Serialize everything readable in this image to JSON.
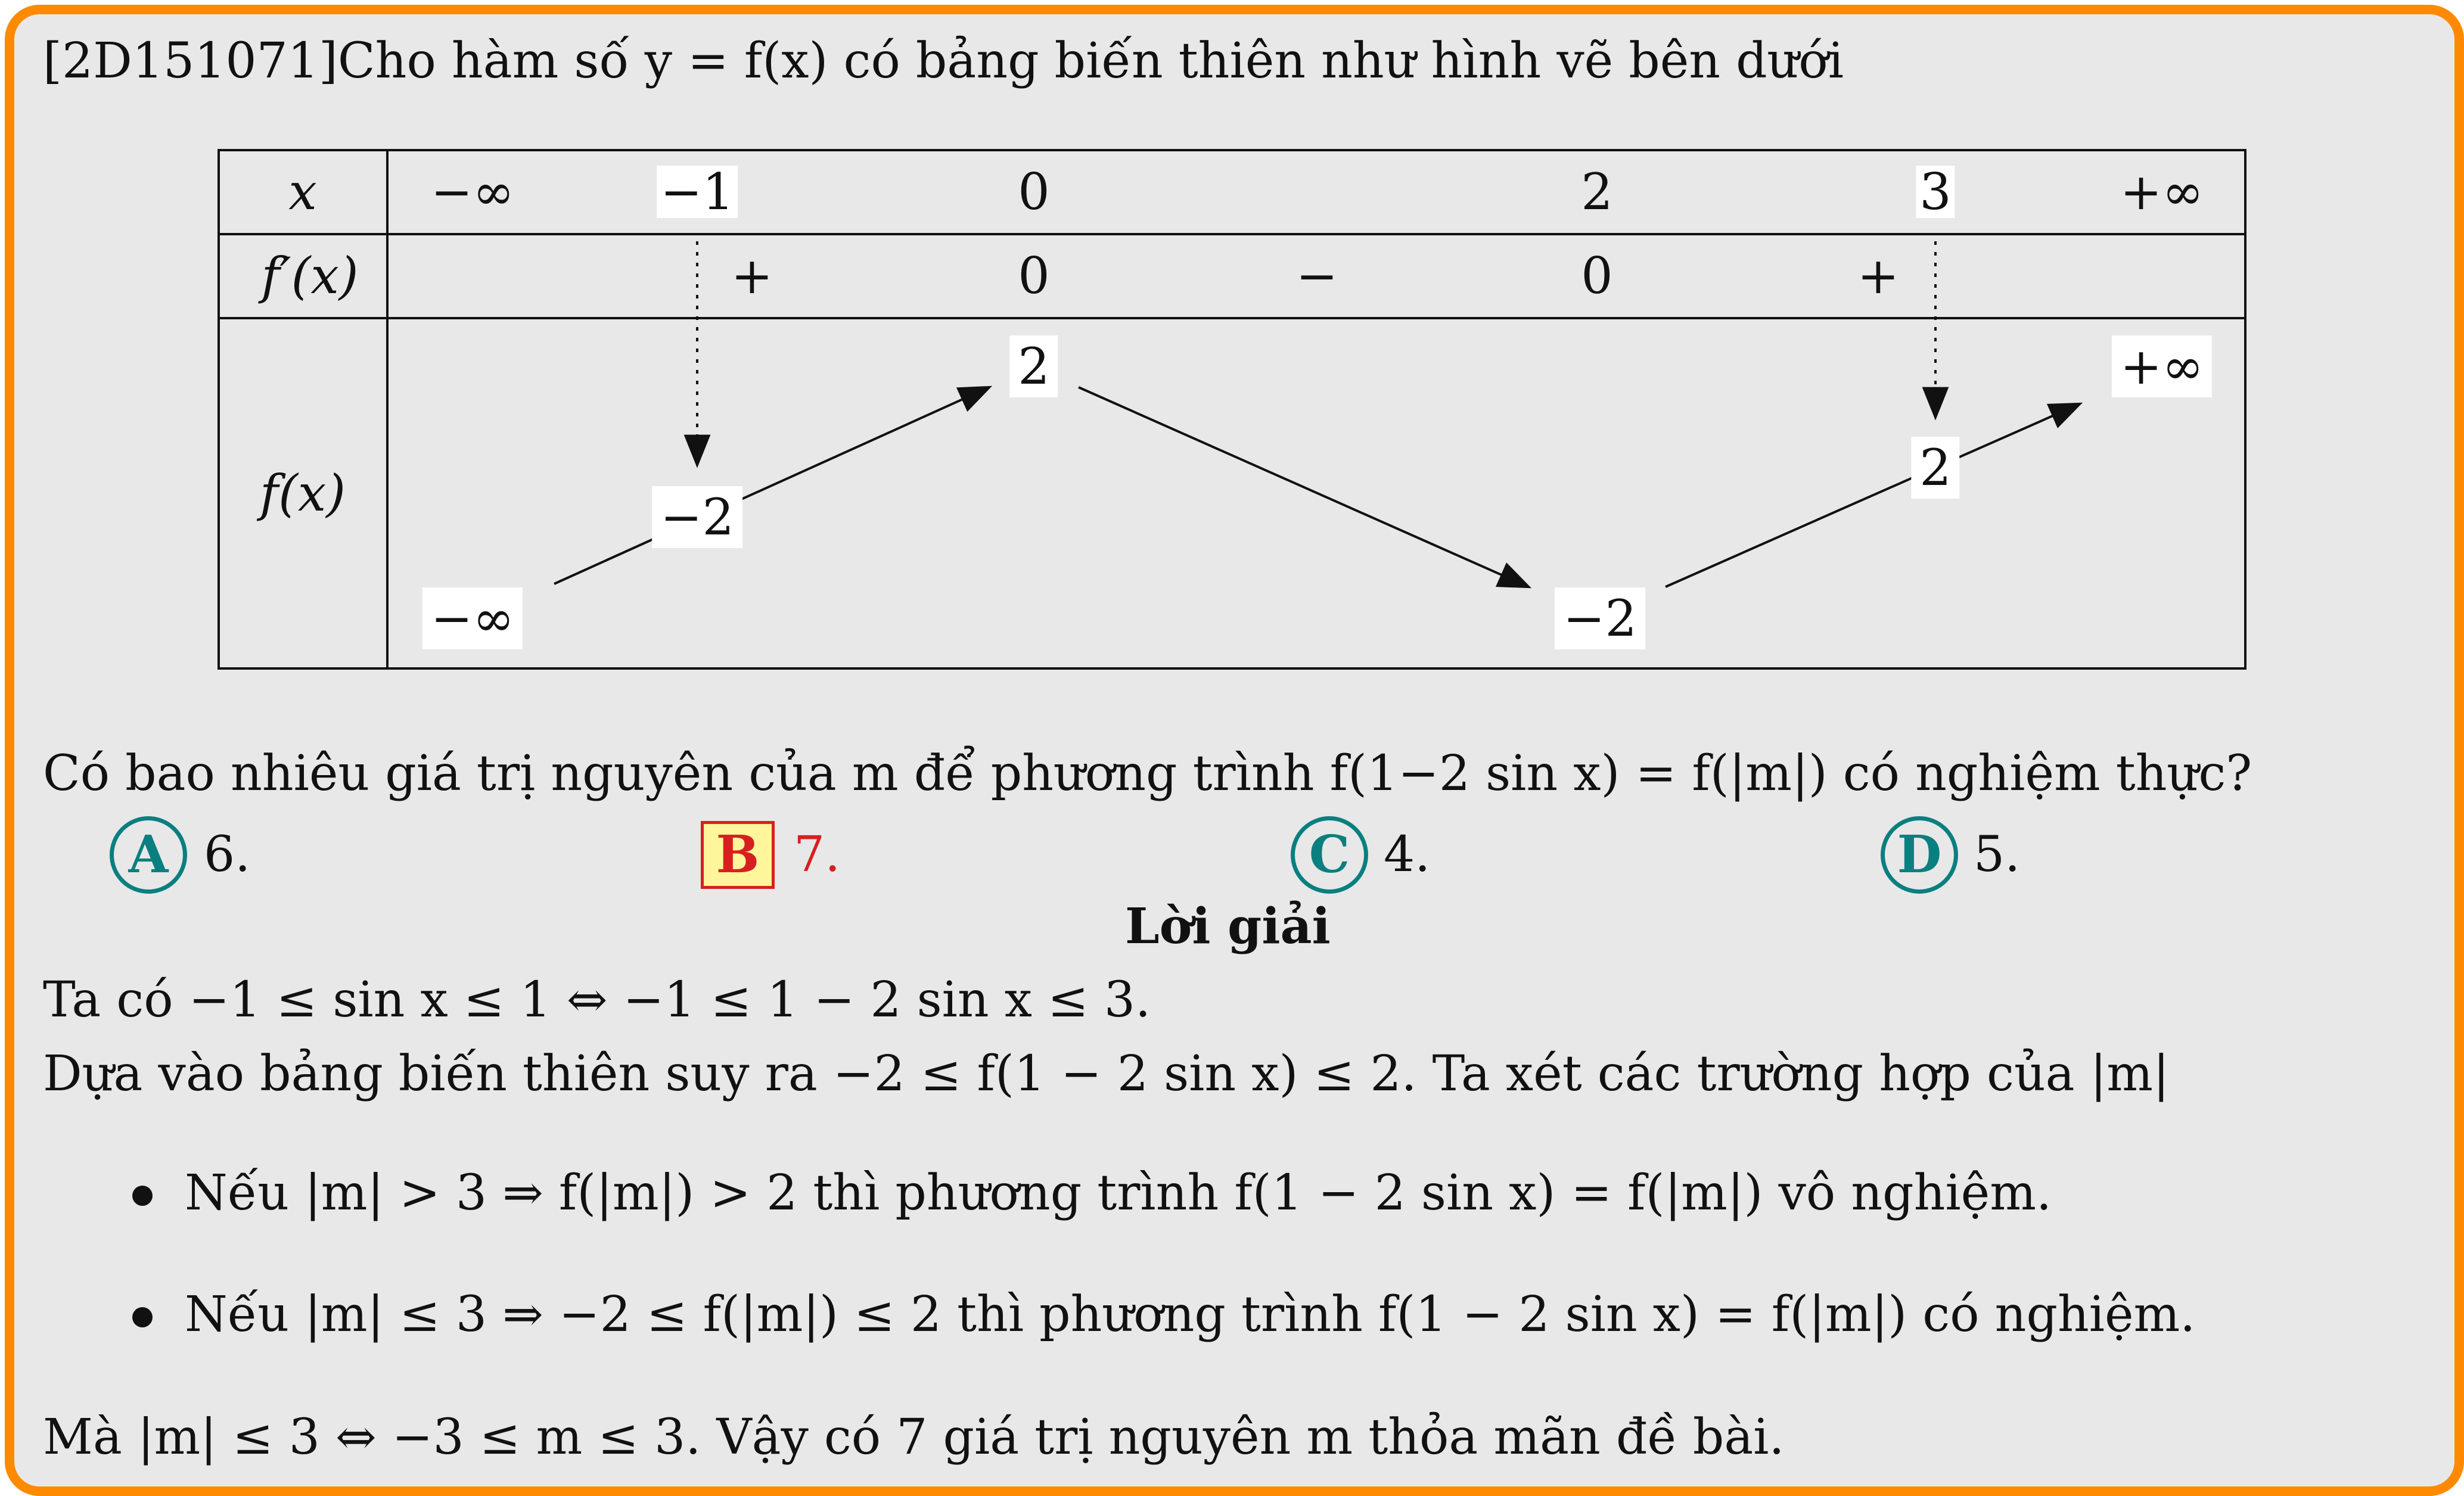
{
  "question": {
    "intro": "[2D151071]Cho hàm số y = f(x) có bảng biến thiên như hình vẽ bên dưới",
    "text": "Có bao nhiêu giá trị nguyên của m để phương trình f(1−2 sin x) = f(|m|) có nghiệm thực?"
  },
  "table": {
    "row_labels": [
      "x",
      "f′(x)",
      "f(x)"
    ],
    "x_values": [
      "−∞",
      "−1",
      "0",
      "2",
      "3",
      "+∞"
    ],
    "derivative_signs": [
      "+",
      "0",
      "−",
      "0",
      "+"
    ],
    "f_values": [
      "−∞",
      "−2",
      "2",
      "−2",
      "2",
      "+∞"
    ]
  },
  "options": [
    {
      "letter": "A",
      "value": "6."
    },
    {
      "letter": "B",
      "value": "7.",
      "correct": true
    },
    {
      "letter": "C",
      "value": "4."
    },
    {
      "letter": "D",
      "value": "5."
    }
  ],
  "colors": {
    "frame": "#ff8a00",
    "option_circle": "#0a7f7f",
    "correct": "#d62020",
    "correct_fill": "#fff59a"
  },
  "solution": {
    "heading": "Lời giải",
    "line1": "Ta có −1 ≤ sin x ≤ 1 ⇔ −1 ≤ 1 − 2 sin x ≤ 3.",
    "line2": "Dựa vào bảng biến thiên suy ra −2 ≤ f(1 − 2 sin x) ≤ 2. Ta xét các trường hợp của |m|",
    "bullets": [
      "Nếu |m| > 3 ⇒ f(|m|) > 2 thì phương trình f(1 − 2 sin x) = f(|m|) vô nghiệm.",
      "Nếu |m| ≤ 3 ⇒ −2 ≤ f(|m|) ≤ 2 thì phương trình f(1 − 2 sin x) = f(|m|) có nghiệm."
    ],
    "conclusion": "Mà |m| ≤ 3 ⇔ −3 ≤ m ≤ 3. Vậy có 7 giá trị nguyên m thỏa mãn đề bài."
  }
}
